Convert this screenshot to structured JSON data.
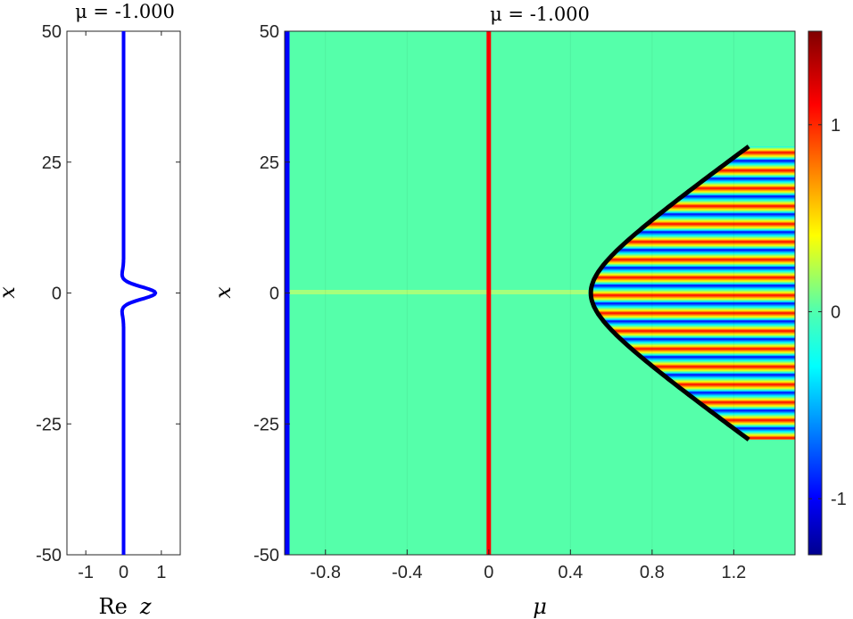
{
  "chart_data": [
    {
      "type": "line",
      "title": "μ = -1.000",
      "xlabel": "Re z",
      "xlabel_parts": [
        "Re",
        "z"
      ],
      "ylabel": "x",
      "xlim": [
        -1.5,
        1.5
      ],
      "ylim": [
        -50,
        50
      ],
      "xticks": [
        -1,
        0,
        1
      ],
      "xtick_labels": [
        "-1",
        "0",
        "1"
      ],
      "yticks": [
        50,
        25,
        0,
        -25,
        -50
      ],
      "ytick_labels": [
        "50",
        "25",
        "0",
        "-25",
        "-50"
      ],
      "grid": false,
      "series": [
        {
          "color": "#0000ff",
          "x_baseline": 0,
          "peak_x": 0.85,
          "peak_at_y": 0,
          "dip_x": -0.05,
          "dip_at_y": 3
        }
      ]
    },
    {
      "type": "heatmap",
      "title": "μ = -1.000",
      "xlabel": "μ",
      "ylabel": "x",
      "xlim": [
        -1,
        1.5
      ],
      "ylim": [
        -50,
        50
      ],
      "xticks": [
        -0.8,
        -0.4,
        0,
        0.4,
        0.8,
        1.2
      ],
      "xtick_labels": [
        "-0.8",
        "-0.4",
        "0",
        "0.4",
        "0.8",
        "1.2"
      ],
      "yticks": [
        50,
        25,
        0,
        -25,
        -50
      ],
      "ytick_labels": [
        "50",
        "25",
        "0",
        "-25",
        "-50"
      ],
      "colormap": "jet",
      "clim": [
        -1.3,
        1.5
      ],
      "colorbar_ticks": [
        1,
        0,
        -1
      ],
      "colorbar_tick_labels": [
        "1",
        "0",
        "-1"
      ],
      "background_value": 0,
      "vertical_lines": [
        {
          "x": -1,
          "color": "#0000ff"
        },
        {
          "x": 0,
          "color": "#ff0000"
        }
      ],
      "boundary": {
        "color": "#000000",
        "vertex": [
          0.5,
          0
        ],
        "points": [
          [
            1.5,
            28
          ],
          [
            0.62,
            7
          ],
          [
            0.5,
            0
          ],
          [
            0.62,
            -7
          ],
          [
            1.5,
            -28
          ]
        ]
      }
    }
  ]
}
